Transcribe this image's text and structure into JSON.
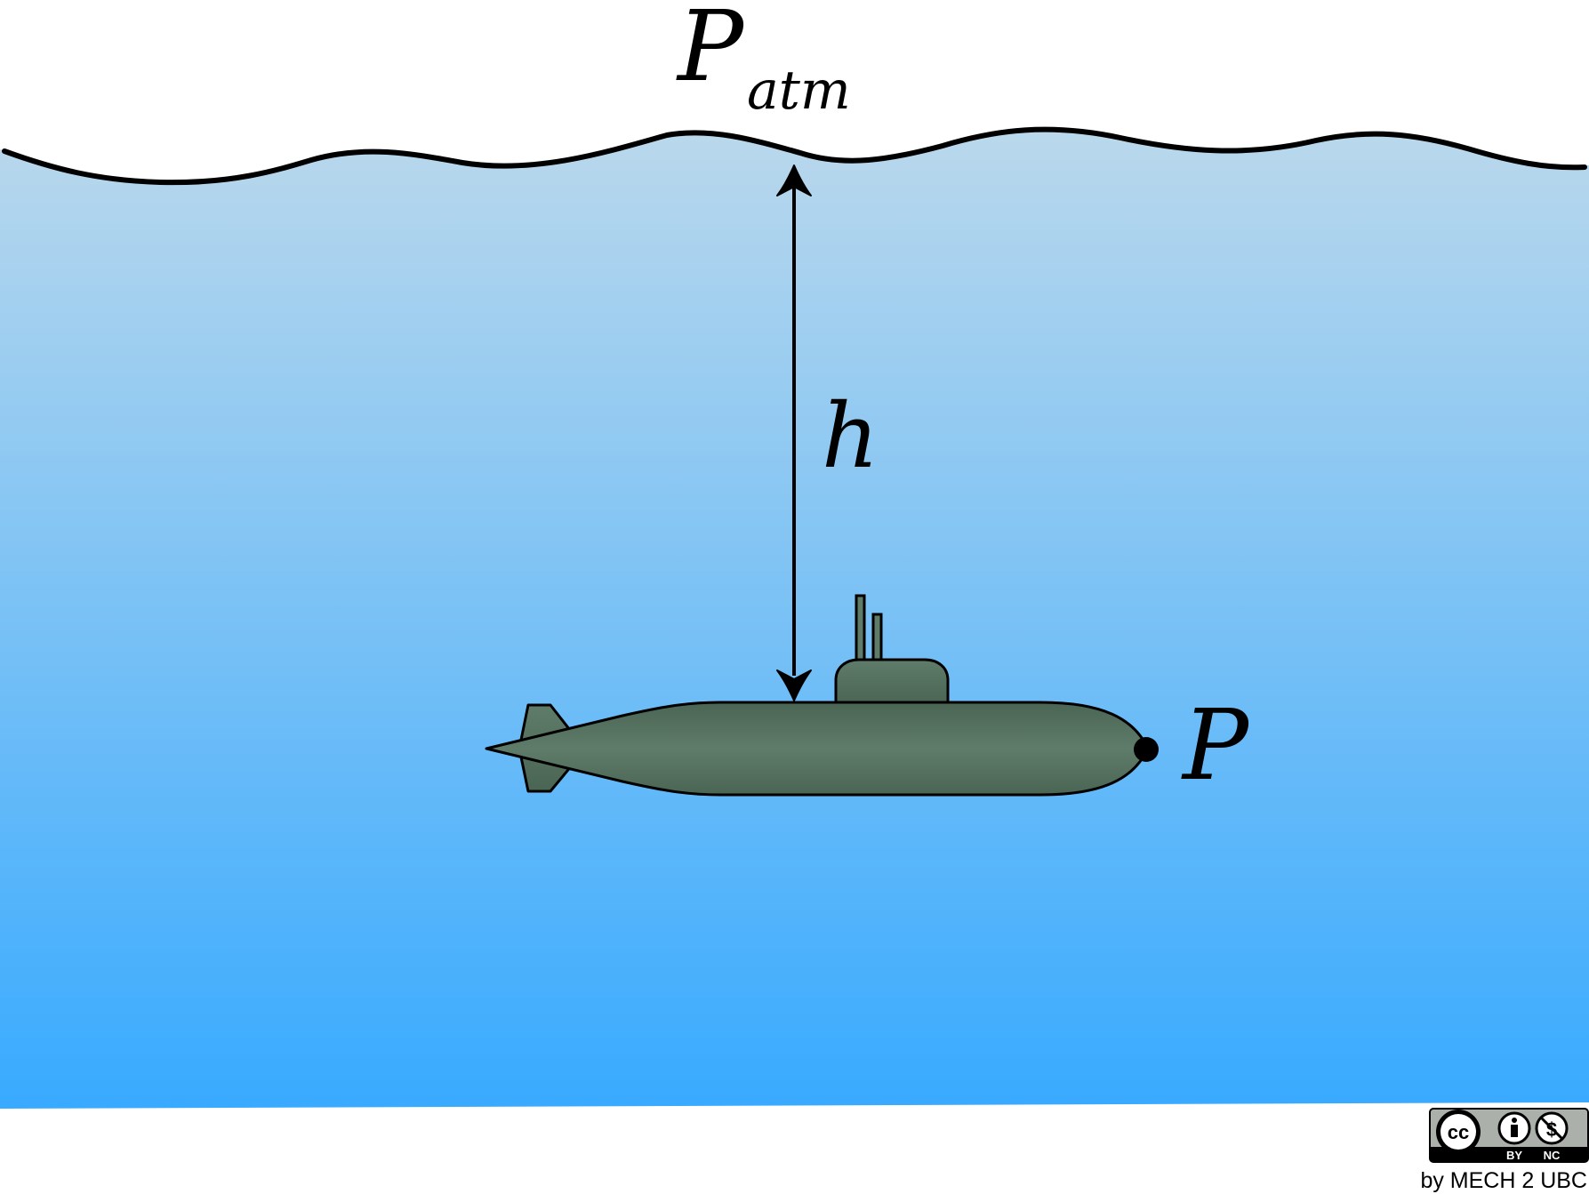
{
  "labels": {
    "surface_pressure": {
      "main": "P",
      "subscript": "atm"
    },
    "depth": "h",
    "point_pressure": "P"
  },
  "license": {
    "badge_cc": "cc",
    "badge_by": "BY",
    "badge_nc": "NC",
    "credit": "by MECH 2 UBC"
  },
  "colors": {
    "water_top": "#bad8ec",
    "water_bottom": "#38aaff",
    "submarine_hull_center": "#5f7b69",
    "submarine_hull_edge": "#4a6554",
    "outline": "#000000"
  },
  "icons": [
    "creative-commons-icon",
    "attribution-icon",
    "non-commercial-icon"
  ]
}
